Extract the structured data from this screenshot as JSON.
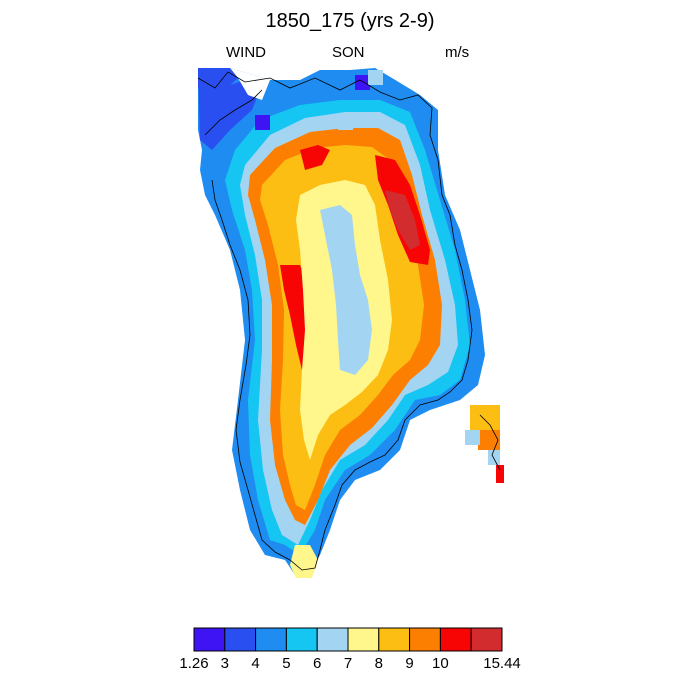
{
  "header": {
    "title": "1850_175 (yrs 2-9)",
    "left_label": "WIND",
    "center_label": "SON",
    "right_label": "m/s"
  },
  "legend": {
    "colors": [
      "#3f14f4",
      "#2a4ff0",
      "#1e8cf0",
      "#16c6f2",
      "#a3d5f3",
      "#fff68c",
      "#fdbe13",
      "#fc7f01",
      "#f70504",
      "#d32c2f"
    ],
    "labels": [
      "1.26",
      "3",
      "4",
      "5",
      "6",
      "7",
      "8",
      "9",
      "10",
      "15.44"
    ]
  },
  "map": {
    "region": "Greenland",
    "colors": {
      "low_blue": "#2a4ff0",
      "blue": "#1e8cf0",
      "cyan": "#16c6f2",
      "light_blue": "#a3d5f3",
      "pale_yellow": "#fff68c",
      "orange_yellow": "#fdbe13",
      "orange": "#fc7f01",
      "red": "#f70504",
      "dark_red": "#d32c2f",
      "violet": "#3f14f4"
    }
  }
}
